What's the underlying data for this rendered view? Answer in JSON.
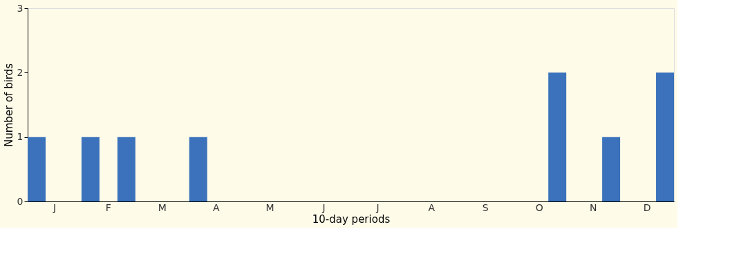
{
  "chart_data": {
    "type": "bar",
    "xlabel": "10-day periods",
    "ylabel": "Number of birds",
    "categories": [
      null,
      "J",
      null,
      null,
      "F",
      null,
      null,
      "M",
      null,
      null,
      "A",
      null,
      null,
      "M",
      null,
      null,
      "J",
      null,
      null,
      "J",
      null,
      null,
      "A",
      null,
      null,
      "S",
      null,
      null,
      "O",
      null,
      null,
      "N",
      null,
      null,
      "D",
      null
    ],
    "values": [
      1,
      0,
      0,
      1,
      0,
      1,
      0,
      0,
      0,
      1,
      0,
      0,
      0,
      0,
      0,
      0,
      0,
      0,
      0,
      0,
      0,
      0,
      0,
      0,
      0,
      0,
      0,
      0,
      0,
      2,
      0,
      0,
      1,
      0,
      0,
      2
    ],
    "color": "#3b72bb",
    "ylim": [
      0,
      3
    ],
    "yticks": [
      0,
      1,
      2,
      3
    ]
  }
}
